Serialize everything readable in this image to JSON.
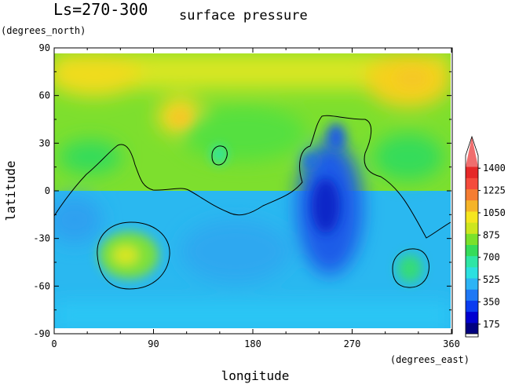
{
  "chart_data": {
    "type": "heatmap",
    "title_left": "Ls=270-300",
    "title_right": "surface pressure",
    "xlabel": "longitude",
    "ylabel": "latitude",
    "x_units": "(degrees_east)",
    "y_units": "(degrees_north)",
    "xlim": [
      0,
      360
    ],
    "ylim": [
      -90,
      90
    ],
    "x_ticks": [
      0,
      90,
      180,
      270,
      360
    ],
    "y_ticks": [
      -90,
      -60,
      -30,
      0,
      30,
      60,
      90
    ],
    "colorbar": {
      "range": [
        100,
        1500
      ],
      "ticks": [
        175,
        350,
        525,
        700,
        875,
        1050,
        1225,
        1400
      ],
      "colors": [
        "#000080",
        "#0000d0",
        "#0a3cf0",
        "#1e78f5",
        "#2db4f5",
        "#2ce0e0",
        "#2ee6a5",
        "#35dc5a",
        "#7ae12b",
        "#cde61e",
        "#f5e61e",
        "#f5b428",
        "#f57d32",
        "#f54b3c",
        "#e62828",
        "#f06e6e"
      ]
    }
  }
}
